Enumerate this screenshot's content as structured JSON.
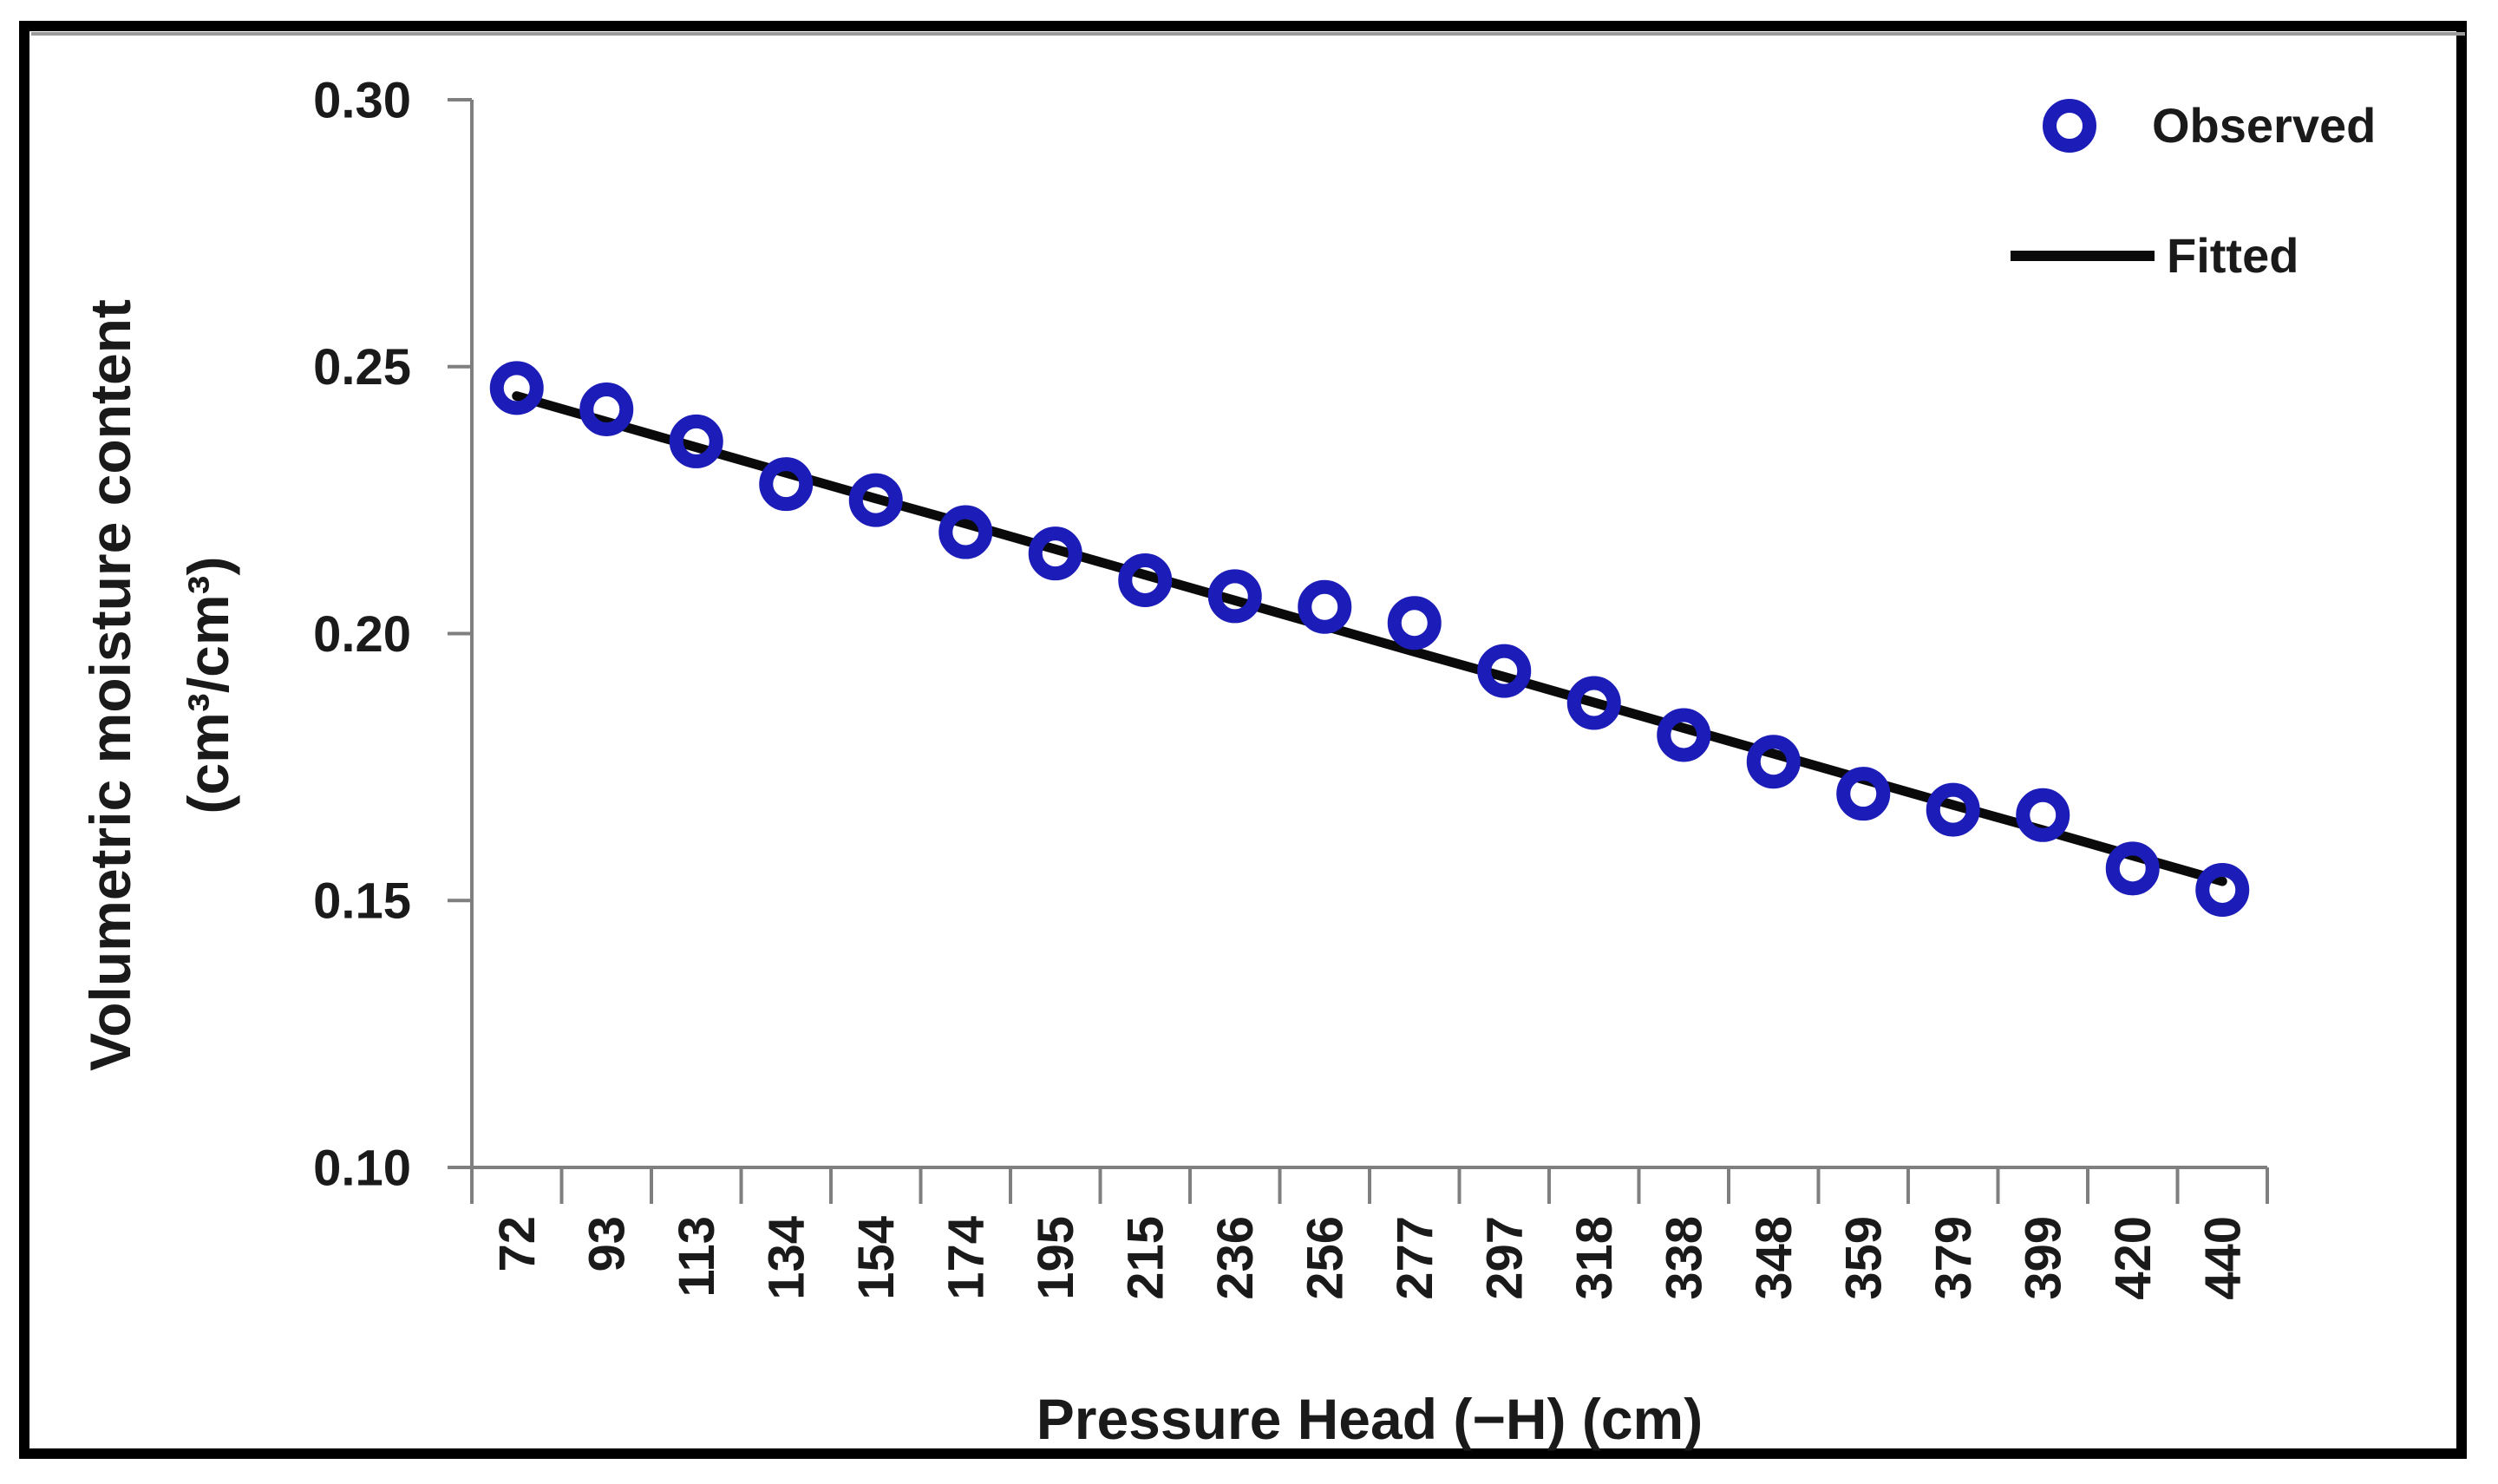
{
  "figure": {
    "background_color": "#FFFFFF",
    "border_color": "#000000",
    "text_color": "#1A1A1A",
    "axis_color": "#7F7F7F"
  },
  "legend": {
    "position": "top-right",
    "items": [
      {
        "label": "Observed",
        "marker": "open-circle-icon",
        "color": "#1C1CB8"
      },
      {
        "label": "Fitted",
        "marker": "line-swatch-icon",
        "color": "#0A0A0A"
      }
    ]
  },
  "chart_data": {
    "type": "line",
    "title": "",
    "xlabel": "Pressure Head (−H) (cm)",
    "ylabel": "Volumetric moisture content",
    "ylabel_units": "(cm³/cm³)",
    "categories": [
      72,
      93,
      113,
      134,
      154,
      174,
      195,
      215,
      236,
      256,
      277,
      297,
      318,
      338,
      348,
      359,
      379,
      399,
      420,
      440
    ],
    "y_ticks": [
      0.3,
      0.25,
      0.2,
      0.15,
      0.1
    ],
    "y_tick_labels": [
      "0.30",
      "0.25",
      "0.20",
      "0.15",
      "0.10"
    ],
    "ylim": [
      0.1,
      0.3
    ],
    "grid": false,
    "legend_position": "top-right",
    "axis_color": "#7F7F7F",
    "series": [
      {
        "name": "Observed",
        "type": "scatter",
        "marker": "open-circle",
        "color": "#1C1CB8",
        "values": [
          0.246,
          0.242,
          0.236,
          0.228,
          0.225,
          0.219,
          0.215,
          0.21,
          0.207,
          0.205,
          0.202,
          0.193,
          0.187,
          0.181,
          0.176,
          0.17,
          0.167,
          0.166,
          0.156,
          0.152
        ]
      },
      {
        "name": "Fitted",
        "type": "line",
        "marker": "none",
        "color": "#0A0A0A",
        "values": [
          0.2445,
          0.2397,
          0.2349,
          0.2301,
          0.2253,
          0.2206,
          0.2158,
          0.211,
          0.2062,
          0.2014,
          0.1966,
          0.1919,
          0.1871,
          0.1823,
          0.1775,
          0.1727,
          0.1679,
          0.1632,
          0.1584,
          0.1536
        ]
      }
    ]
  }
}
